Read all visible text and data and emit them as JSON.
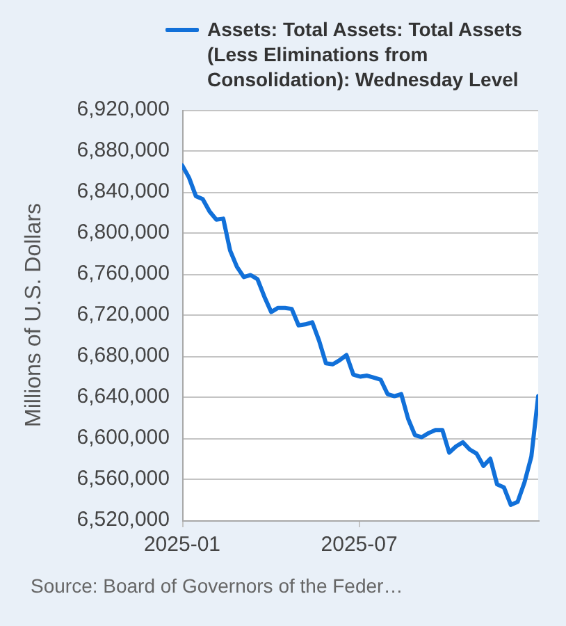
{
  "chart_data": {
    "type": "line",
    "x": [
      "2025-01-01",
      "2025-01-08",
      "2025-01-15",
      "2025-01-22",
      "2025-01-29",
      "2025-02-05",
      "2025-02-12",
      "2025-02-19",
      "2025-02-26",
      "2025-03-05",
      "2025-03-12",
      "2025-03-19",
      "2025-03-26",
      "2025-04-02",
      "2025-04-09",
      "2025-04-16",
      "2025-04-23",
      "2025-04-30",
      "2025-05-07",
      "2025-05-14",
      "2025-05-21",
      "2025-05-28",
      "2025-06-04",
      "2025-06-11",
      "2025-06-18",
      "2025-06-25",
      "2025-07-02",
      "2025-07-09",
      "2025-07-16",
      "2025-07-23",
      "2025-07-30",
      "2025-08-06",
      "2025-08-13",
      "2025-08-20",
      "2025-08-27",
      "2025-09-03",
      "2025-09-10",
      "2025-09-17",
      "2025-09-24",
      "2025-10-01",
      "2025-10-08",
      "2025-10-15",
      "2025-10-22",
      "2025-10-29",
      "2025-11-05",
      "2025-11-12",
      "2025-11-19",
      "2025-11-26",
      "2025-12-03",
      "2025-12-10",
      "2025-12-17",
      "2025-12-24",
      "2025-12-31"
    ],
    "series": [
      {
        "name": "Assets: Total Assets: Total Assets (Less Eliminations from Consolidation): Wednesday Level",
        "color": "#1170d9",
        "values": [
          6866000,
          6854000,
          6836000,
          6833000,
          6821000,
          6813000,
          6814000,
          6783000,
          6767000,
          6757000,
          6759000,
          6755000,
          6738000,
          6723000,
          6727000,
          6727000,
          6726000,
          6710000,
          6711000,
          6713000,
          6695000,
          6673000,
          6672000,
          6676000,
          6681000,
          6662000,
          6660000,
          6661000,
          6659000,
          6657000,
          6643000,
          6641000,
          6643000,
          6619000,
          6603000,
          6601000,
          6605000,
          6608000,
          6608000,
          6586000,
          6592000,
          6596000,
          6589000,
          6585000,
          6573000,
          6580000,
          6555000,
          6552000,
          6535000,
          6538000,
          6557000,
          6582000,
          6641000
        ]
      }
    ],
    "ylabel": "Millions of U.S. Dollars",
    "xlim": [
      "2025-01-01",
      "2025-12-31"
    ],
    "xticks": [
      "2025-01",
      "2025-07"
    ],
    "ylim": [
      6520000,
      6920000
    ],
    "yticks": [
      {
        "value": 6520000,
        "label": "6,520,000"
      },
      {
        "value": 6560000,
        "label": "6,560,000"
      },
      {
        "value": 6600000,
        "label": "6,600,000"
      },
      {
        "value": 6640000,
        "label": "6,640,000"
      },
      {
        "value": 6680000,
        "label": "6,680,000"
      },
      {
        "value": 6720000,
        "label": "6,720,000"
      },
      {
        "value": 6760000,
        "label": "6,760,000"
      },
      {
        "value": 6800000,
        "label": "6,800,000"
      },
      {
        "value": 6840000,
        "label": "6,840,000"
      },
      {
        "value": 6880000,
        "label": "6,880,000"
      },
      {
        "value": 6920000,
        "label": "6,920,000"
      }
    ],
    "grid": "y",
    "legend": "top right",
    "marker": "none",
    "line_style": "solid",
    "annotations": [
      "Source: Board of Governors of the Feder…"
    ]
  }
}
